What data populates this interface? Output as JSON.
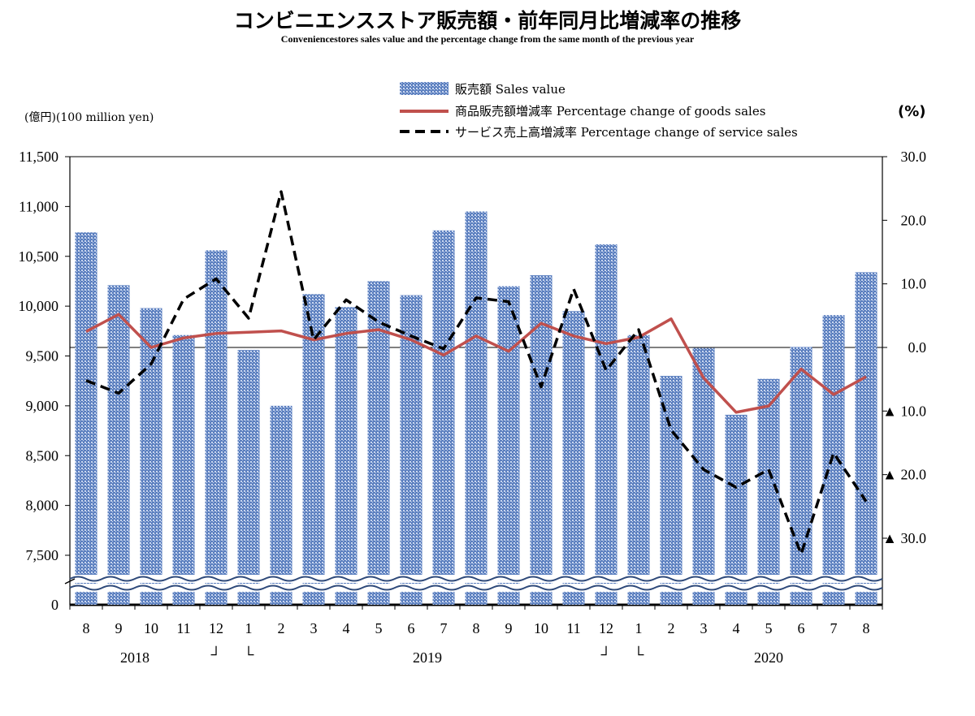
{
  "title": "コンビニエンスストア販売額・前年同月比増減率の推移",
  "subtitle": "Conveniencestores sales value and the percentage change from the same month of the previous year",
  "left_unit": "(億円)(100 million yen)",
  "right_unit": "(%)",
  "legend": [
    {
      "key": "sales",
      "label": "販売額 Sales value"
    },
    {
      "key": "goods",
      "label": "商品販売額増減率 Percentage change of goods sales"
    },
    {
      "key": "service",
      "label": "サービス売上高増減率 Percentage change of service sales"
    }
  ],
  "colors": {
    "bar": "#5b7fbf",
    "bar_dot": "#c9d6ef",
    "goods": "#c0504d",
    "service": "#000000",
    "axis": "#000000"
  },
  "chart_data": {
    "type": "bar+line",
    "categories": [
      "8",
      "9",
      "10",
      "11",
      "12",
      "1",
      "2",
      "3",
      "4",
      "5",
      "6",
      "7",
      "8",
      "9",
      "10",
      "11",
      "12",
      "1",
      "2",
      "3",
      "4",
      "5",
      "6",
      "7",
      "8"
    ],
    "year_labels": [
      {
        "label": "2018",
        "at_index": 1.5
      },
      {
        "label": "2019",
        "at_index": 10.5
      },
      {
        "label": "2020",
        "at_index": 21
      }
    ],
    "year_break_marks": [
      {
        "glyph": "┘",
        "at_index": 4
      },
      {
        "glyph": "└",
        "at_index": 5
      },
      {
        "glyph": "┘",
        "at_index": 16
      },
      {
        "glyph": "└",
        "at_index": 17
      }
    ],
    "left_axis": {
      "ticks": [
        "11,500",
        "11,000",
        "10,500",
        "10,000",
        "9,500",
        "9,000",
        "8,500",
        "8,000",
        "7,500",
        "0"
      ],
      "tick_values": [
        11500,
        11000,
        10500,
        10000,
        9500,
        9000,
        8500,
        8000,
        7500
      ],
      "range": [
        7000,
        11500
      ],
      "broken_axis": true
    },
    "right_axis": {
      "ticks": [
        "30.0",
        "20.0",
        "10.0",
        "0.0",
        "▲ 10.0",
        "▲ 20.0",
        "▲ 30.0"
      ],
      "tick_values": [
        30,
        20,
        10,
        0,
        -10,
        -20,
        -30
      ],
      "range": [
        -40,
        30
      ]
    },
    "series": [
      {
        "name": "販売額 Sales value",
        "axis": "left",
        "kind": "bar",
        "values": [
          10740,
          10210,
          9980,
          9710,
          10560,
          9560,
          9000,
          10120,
          9990,
          10250,
          10110,
          10760,
          10950,
          10200,
          10310,
          9950,
          10620,
          9710,
          9300,
          9580,
          8910,
          9270,
          9590,
          9910,
          10340
        ]
      },
      {
        "name": "商品販売額増減率 Percentage change of goods sales",
        "axis": "right",
        "kind": "line",
        "values": [
          2.5,
          5.2,
          0.0,
          1.5,
          2.2,
          2.4,
          2.6,
          1.2,
          2.2,
          2.8,
          1.2,
          -1.2,
          1.8,
          -0.6,
          3.8,
          1.8,
          0.6,
          1.6,
          4.5,
          -4.8,
          -10.2,
          -9.2,
          -3.4,
          -7.4,
          -4.6
        ]
      },
      {
        "name": "サービス売上高増減率 Percentage change of service sales",
        "axis": "right",
        "kind": "dashed-line",
        "values": [
          -5.2,
          -7.2,
          -2.6,
          7.6,
          10.8,
          4.6,
          24.5,
          1.2,
          7.5,
          4.0,
          1.8,
          -0.2,
          7.8,
          7.2,
          -6.2,
          9.2,
          -3.6,
          2.8,
          -13.0,
          -19.2,
          -22.0,
          -19.2,
          -32.5,
          -16.6,
          -24.2
        ]
      }
    ]
  }
}
